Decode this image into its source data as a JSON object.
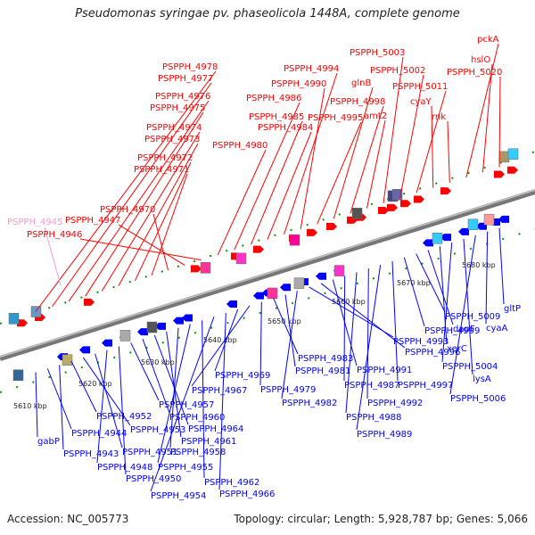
{
  "title": "Pseudomonas syringae pv. phaseolicola 1448A, complete genome",
  "footer": {
    "accession": "Accession: NC_005773",
    "topology": "Topology: circular; Length: 5,928,787 bp; Genes: 5,066"
  },
  "kbp_ticks": [
    "5610 kbp",
    "5620 kbp",
    "5630 kbp",
    "5640 kbp",
    "5650 kbp",
    "5660 kbp",
    "5670 kbp",
    "5680 kbp"
  ],
  "labels_forward": [
    "PSPPH_4978",
    "PSPPH_4977",
    "PSPPH_4976",
    "PSPPH_4975",
    "PSPPH_4974",
    "PSPPH_4973",
    "PSPPH_4972",
    "PSPPH_4971",
    "PSPPH_4970",
    "PSPPH_4947",
    "PSPPH_4946",
    "PSPPH_4980",
    "PSPPH_4986",
    "PSPPH_4985",
    "PSPPH_4984",
    "PSPPH_4994",
    "PSPPH_4990",
    "PSPPH_4995",
    "glnB",
    "PSPPH_4998",
    "amt2",
    "PSPPH_5003",
    "PSPPH_5002",
    "PSPPH_5011",
    "cyaY",
    "rnk",
    "pckA",
    "hslO",
    "PSPPH_5020"
  ],
  "labels_pseudo": [
    "PSPPH_4945"
  ],
  "labels_reverse": [
    "gabP",
    "PSPPH_4944",
    "PSPPH_4943",
    "PSPPH_4952",
    "PSPPH_4953",
    "PSPPH_4951",
    "PSPPH_4948",
    "PSPPH_4950",
    "PSPPH_4957",
    "PSPPH_4960",
    "PSPPH_4964",
    "PSPPH_4961",
    "PSPPH_4958",
    "PSPPH_4955",
    "PSPPH_4962",
    "PSPPH_4954",
    "PSPPH_4966",
    "PSPPH_4969",
    "PSPPH_4967",
    "PSPPH_4979",
    "PSPPH_4983",
    "PSPPH_4981",
    "PSPPH_4982",
    "PSPPH_4993",
    "PSPPH_4996",
    "PSPPH_4991",
    "PSPPH_4987",
    "PSPPH_4988",
    "PSPPH_4992",
    "PSPPH_4989",
    "PSPPH_4997",
    "PSPPH_4999",
    "PSPPH_5009",
    "dapF",
    "xerC",
    "PSPPH_5004",
    "lysA",
    "PSPPH_5006",
    "cyaA",
    "gltP"
  ],
  "colors": {
    "forward": "#ff0000",
    "reverse": "#0000ff",
    "pseudo": "#ff99cc",
    "backbone": "#888888",
    "ticks": "#009900"
  }
}
